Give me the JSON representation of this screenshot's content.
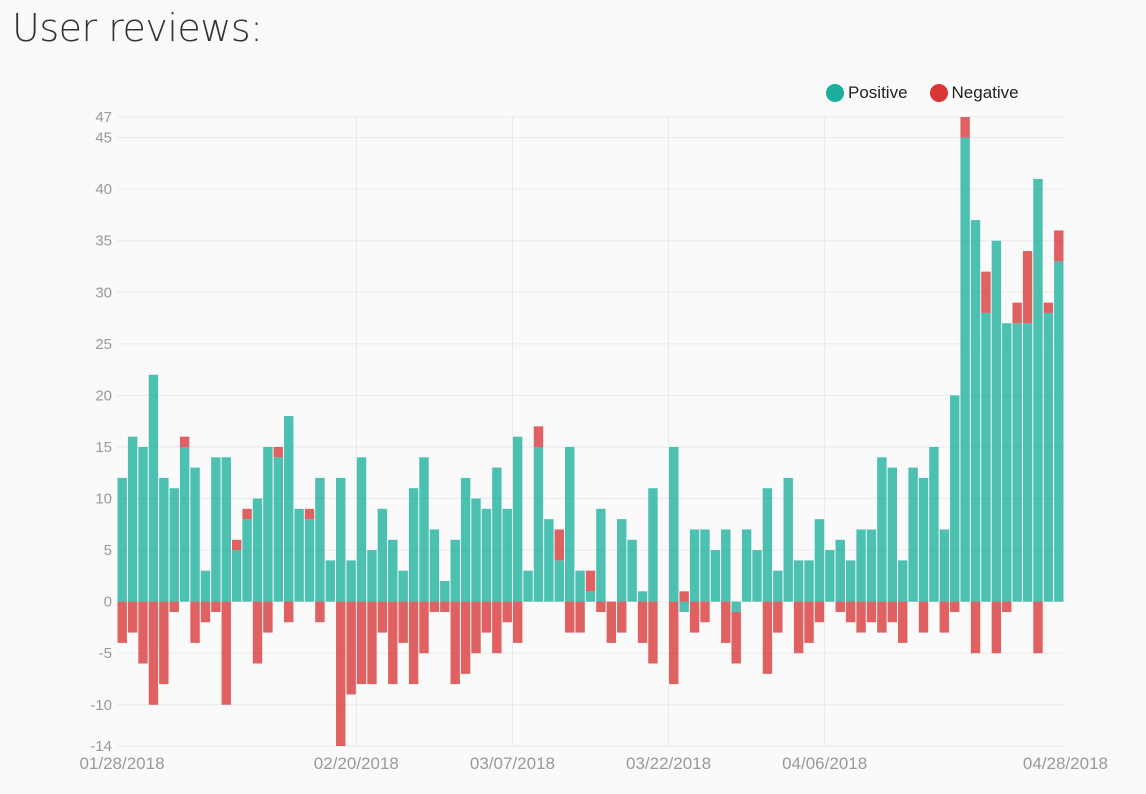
{
  "title": "User reviews:",
  "colors": {
    "positive": "#1baf9c",
    "negative": "#d93636"
  },
  "chart_data": {
    "type": "bar",
    "stacked": true,
    "ylim": [
      -14,
      47
    ],
    "yticks": [
      47,
      45,
      40,
      35,
      30,
      25,
      20,
      15,
      10,
      5,
      0,
      -5,
      -10,
      -14
    ],
    "xticks": [
      "01/28/2018",
      "02/20/2018",
      "03/07/2018",
      "03/22/2018",
      "04/06/2018",
      "04/28/2018"
    ],
    "xtick_day_index": [
      0,
      23,
      38,
      53,
      68,
      90
    ],
    "start_date": "01/28/2018",
    "grid": true,
    "legend_position": "top-right",
    "series": [
      {
        "name": "Positive",
        "values": [
          12,
          16,
          15,
          22,
          12,
          11,
          15,
          13,
          3,
          14,
          14,
          5,
          8,
          10,
          15,
          14,
          18,
          9,
          8,
          12,
          4,
          12,
          4,
          14,
          5,
          9,
          6,
          3,
          11,
          14,
          7,
          2,
          6,
          12,
          10,
          9,
          13,
          9,
          16,
          3,
          15,
          8,
          4,
          15,
          3,
          1,
          9,
          0,
          8,
          6,
          1,
          11,
          0,
          15,
          -1,
          7,
          7,
          5,
          7,
          -1,
          7,
          5,
          11,
          3,
          12,
          4,
          4,
          8,
          5,
          6,
          4,
          7,
          7,
          14,
          13,
          4,
          13,
          12,
          15,
          7,
          20,
          45,
          37,
          28,
          35,
          27,
          27,
          27,
          41,
          28,
          33
        ]
      },
      {
        "name": "Negative",
        "values": [
          -4,
          -3,
          -6,
          -10,
          -8,
          -1,
          1,
          -4,
          -2,
          -1,
          -10,
          1,
          1,
          -6,
          -3,
          1,
          -2,
          0,
          1,
          -2,
          0,
          -14,
          -9,
          -8,
          -8,
          -3,
          -8,
          -4,
          -8,
          -5,
          -1,
          -1,
          -8,
          -7,
          -5,
          -3,
          -5,
          -2,
          -4,
          0,
          2,
          0,
          3,
          -3,
          -3,
          2,
          -1,
          -4,
          -3,
          0,
          -4,
          -6,
          0,
          -8,
          1,
          -3,
          -2,
          0,
          -4,
          -5,
          0,
          0,
          -7,
          -3,
          0,
          -5,
          -4,
          -2,
          0,
          -1,
          -2,
          -3,
          -2,
          -3,
          -2,
          -4,
          0,
          -3,
          0,
          -3,
          -1,
          2,
          -5,
          4,
          -5,
          -1,
          2,
          7,
          -5,
          1,
          3
        ]
      }
    ]
  }
}
